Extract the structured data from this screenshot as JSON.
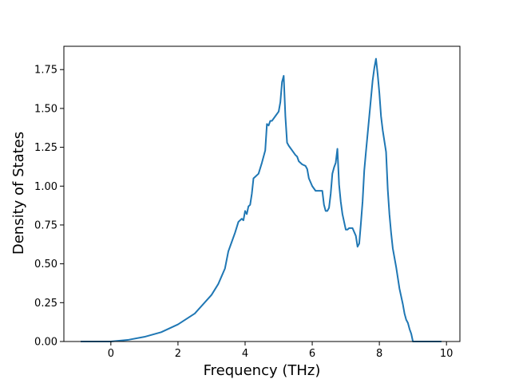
{
  "chart_data": {
    "type": "line",
    "title": "",
    "xlabel": "Frequency (THz)",
    "ylabel": "Density of States",
    "xlim": [
      -1.4,
      10.4
    ],
    "ylim": [
      0,
      1.9
    ],
    "xticks": [
      0,
      2,
      4,
      6,
      8,
      10
    ],
    "xtick_labels": [
      "0",
      "2",
      "4",
      "6",
      "8",
      "10"
    ],
    "yticks": [
      0,
      0.25,
      0.5,
      0.75,
      1.0,
      1.25,
      1.5,
      1.75
    ],
    "ytick_labels": [
      "0.00",
      "0.25",
      "0.50",
      "0.75",
      "1.00",
      "1.25",
      "1.50",
      "1.75"
    ],
    "grid": false,
    "series": [
      {
        "color": "#1f77b4",
        "x": [
          -0.9,
          -0.5,
          0.0,
          0.5,
          1.0,
          1.5,
          2.0,
          2.5,
          3.0,
          3.2,
          3.4,
          3.5,
          3.6,
          3.7,
          3.8,
          3.9,
          3.95,
          4.0,
          4.05,
          4.1,
          4.15,
          4.2,
          4.25,
          4.3,
          4.4,
          4.5,
          4.6,
          4.65,
          4.7,
          4.75,
          4.8,
          4.9,
          5.0,
          5.05,
          5.1,
          5.15,
          5.2,
          5.25,
          5.3,
          5.4,
          5.5,
          5.55,
          5.6,
          5.7,
          5.8,
          5.85,
          5.9,
          6.0,
          6.1,
          6.2,
          6.3,
          6.35,
          6.4,
          6.45,
          6.5,
          6.55,
          6.6,
          6.65,
          6.7,
          6.75,
          6.8,
          6.85,
          6.9,
          7.0,
          7.05,
          7.1,
          7.2,
          7.3,
          7.35,
          7.4,
          7.45,
          7.5,
          7.55,
          7.6,
          7.7,
          7.8,
          7.85,
          7.9,
          7.95,
          8.0,
          8.05,
          8.1,
          8.2,
          8.25,
          8.3,
          8.35,
          8.4,
          8.5,
          8.6,
          8.7,
          8.75,
          8.8,
          8.85,
          8.9,
          8.95,
          9.0,
          9.5,
          9.85
        ],
        "y": [
          0.0,
          0.0,
          0.0,
          0.01,
          0.03,
          0.06,
          0.11,
          0.18,
          0.3,
          0.37,
          0.47,
          0.58,
          0.64,
          0.7,
          0.77,
          0.79,
          0.78,
          0.84,
          0.82,
          0.87,
          0.88,
          0.95,
          1.05,
          1.06,
          1.08,
          1.15,
          1.23,
          1.4,
          1.39,
          1.42,
          1.42,
          1.45,
          1.48,
          1.54,
          1.67,
          1.71,
          1.45,
          1.28,
          1.26,
          1.23,
          1.2,
          1.19,
          1.16,
          1.14,
          1.13,
          1.11,
          1.05,
          1.0,
          0.97,
          0.97,
          0.97,
          0.88,
          0.84,
          0.84,
          0.86,
          0.95,
          1.08,
          1.12,
          1.15,
          1.24,
          1.01,
          0.9,
          0.82,
          0.72,
          0.72,
          0.73,
          0.73,
          0.68,
          0.61,
          0.63,
          0.76,
          0.9,
          1.1,
          1.22,
          1.45,
          1.68,
          1.76,
          1.82,
          1.72,
          1.6,
          1.45,
          1.36,
          1.22,
          0.98,
          0.82,
          0.7,
          0.6,
          0.48,
          0.34,
          0.24,
          0.18,
          0.14,
          0.12,
          0.08,
          0.05,
          0.0,
          0.0,
          0.0
        ]
      }
    ]
  }
}
